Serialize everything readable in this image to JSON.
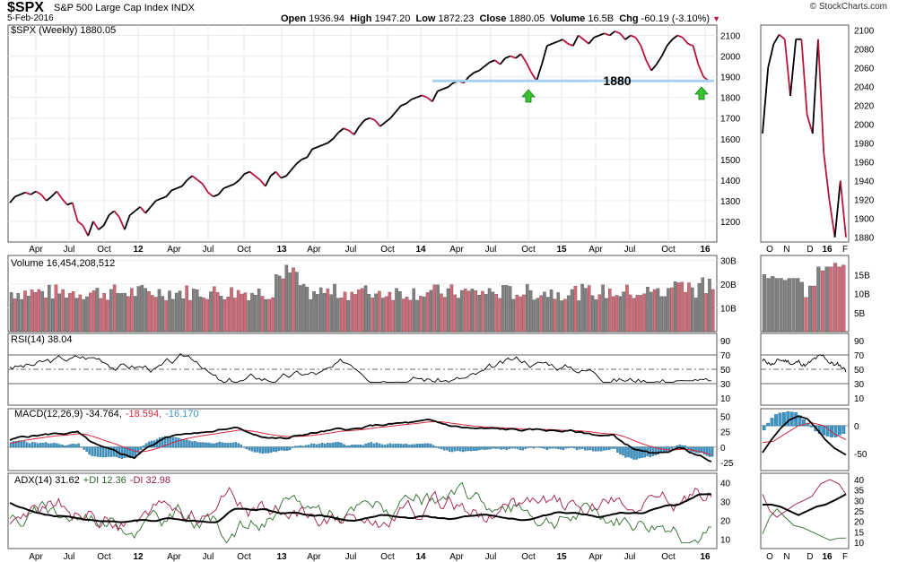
{
  "header": {
    "ticker": "$SPX",
    "name": "S&P 500 Large Cap Index",
    "exchange": "INDX",
    "date": "5-Feb-2016",
    "open_label": "Open",
    "open": "1936.94",
    "high_label": "High",
    "high": "1947.20",
    "low_label": "Low",
    "low": "1872.23",
    "close_label": "Close",
    "close": "1880.05",
    "volume_label": "Volume",
    "volume": "16.5B",
    "chg_label": "Chg",
    "chg": "-60.19 (-3.10%)",
    "credit": "© StockCharts.com"
  },
  "colors": {
    "up": "#000000",
    "down": "#b8133b",
    "volume_up": "#808080",
    "volume_down": "#d46a78",
    "support": "#a8d0f0",
    "histogram": "#3b95c6",
    "arrow": "#37c22e",
    "adx": "#000000",
    "plus_di": "#2e6b2e",
    "minus_di": "#a01a4a"
  },
  "panels": {
    "price_label": "$SPX (Weekly) 1880.05",
    "support_label": "1880",
    "volume_label": "Volume 16,454,208,512",
    "rsi_label": "RSI(14) 38.04",
    "macd_label_main": "MACD(12,26,9) -34.764,",
    "macd_label_signal": "-18.594,",
    "macd_label_hist": "-16.170",
    "adx_label_main": "ADX(14) 31.62",
    "adx_label_plus": "+DI 12.36",
    "adx_label_minus": "-DI 32.98"
  },
  "axes": {
    "x_main_ticks": [
      "Apr",
      "Jul",
      "Oct",
      "12",
      "Apr",
      "Jul",
      "Oct",
      "13",
      "Apr",
      "Jul",
      "Oct",
      "14",
      "Apr",
      "Jul",
      "Oct",
      "15",
      "Apr",
      "Jul",
      "Oct",
      "16"
    ],
    "x_daily_ticks": [
      "O",
      "N",
      "D",
      "16",
      "F"
    ],
    "price_ticks": [
      "2100",
      "2000",
      "1900",
      "1800",
      "1700",
      "1600",
      "1500",
      "1400",
      "1300",
      "1200"
    ],
    "price_ticks_daily": [
      "2100",
      "2080",
      "2060",
      "2040",
      "2020",
      "2000",
      "1980",
      "1960",
      "1940",
      "1920",
      "1900",
      "1880"
    ],
    "volume_ticks": [
      "30B",
      "20B",
      "10B"
    ],
    "volume_ticks_daily": [
      "15B",
      "10B",
      "5B"
    ],
    "rsi_ticks": [
      "90",
      "70",
      "50",
      "30",
      "10"
    ],
    "macd_ticks": [
      "50",
      "25",
      "0",
      "-25"
    ],
    "macd_ticks_daily": [
      "0",
      "-50"
    ],
    "adx_ticks": [
      "40",
      "30",
      "20",
      "10"
    ],
    "adx_ticks_daily": [
      "40",
      "35",
      "30",
      "25",
      "20",
      "15",
      "10"
    ]
  },
  "chart_data": {
    "type": "line",
    "title": "$SPX S&P 500 Large Cap Index (Weekly) 1880.05",
    "x_range": [
      "Feb 2011",
      "Feb 2016"
    ],
    "price": {
      "ylim": [
        1100,
        2150
      ],
      "series": [
        {
          "name": "$SPX weekly close (approx.)",
          "values": [
            1290,
            1320,
            1330,
            1340,
            1330,
            1345,
            1330,
            1300,
            1320,
            1345,
            1310,
            1280,
            1290,
            1200,
            1180,
            1130,
            1200,
            1160,
            1180,
            1230,
            1250,
            1220,
            1160,
            1230,
            1250,
            1270,
            1240,
            1270,
            1300,
            1310,
            1320,
            1350,
            1360,
            1370,
            1400,
            1420,
            1400,
            1380,
            1340,
            1320,
            1330,
            1360,
            1370,
            1380,
            1400,
            1430,
            1440,
            1420,
            1400,
            1370,
            1420,
            1440,
            1410,
            1420,
            1450,
            1480,
            1500,
            1510,
            1550,
            1560,
            1570,
            1580,
            1600,
            1630,
            1650,
            1640,
            1620,
            1660,
            1690,
            1700,
            1690,
            1660,
            1680,
            1700,
            1730,
            1760,
            1770,
            1790,
            1800,
            1810,
            1800,
            1780,
            1830,
            1840,
            1850,
            1870,
            1880,
            1870,
            1900,
            1920,
            1930,
            1950,
            1970,
            1980,
            1960,
            1990,
            2000,
            1990,
            2010,
            1970,
            1920,
            1880,
            1960,
            2050,
            2060,
            2070,
            2080,
            2060,
            2050,
            2100,
            2080,
            2060,
            2090,
            2100,
            2110,
            2100,
            2120,
            2110,
            2080,
            2100,
            2090,
            2050,
            1980,
            1930,
            1960,
            2000,
            2050,
            2080,
            2100,
            2090,
            2060,
            2050,
            1960,
            1900,
            1880
          ]
        }
      ],
      "support_level": 1880,
      "arrows": [
        {
          "at": "Oct 2014"
        },
        {
          "at": "Jan 2016"
        }
      ]
    },
    "daily_price": {
      "x_labels": [
        "O",
        "N",
        "D",
        "16",
        "F"
      ],
      "ylim": [
        1875,
        2105
      ],
      "values": [
        1990,
        2060,
        2085,
        2095,
        2090,
        2030,
        2090,
        2090,
        2010,
        1990,
        2090,
        1970,
        1920,
        1880,
        1940,
        1880
      ]
    },
    "volume": {
      "ylim": [
        0,
        32
      ],
      "unit": "B",
      "latest": "16,454,208,512"
    },
    "rsi": {
      "ylim": [
        0,
        100
      ],
      "latest": 38.04,
      "levels": [
        70,
        50,
        30
      ]
    },
    "macd": {
      "macd": -34.764,
      "signal": -18.594,
      "histogram": -16.17
    },
    "adx": {
      "adx": 31.62,
      "plus_di": 12.36,
      "minus_di": 32.98,
      "ylim": [
        5,
        45
      ]
    }
  }
}
